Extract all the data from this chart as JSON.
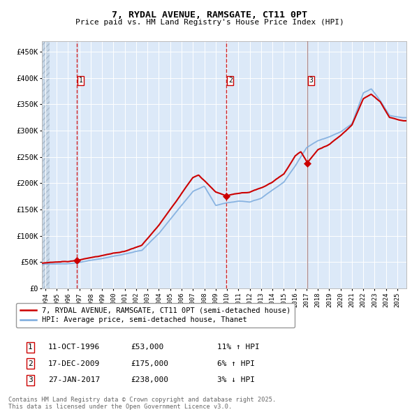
{
  "title_line1": "7, RYDAL AVENUE, RAMSGATE, CT11 0PT",
  "title_line2": "Price paid vs. HM Land Registry's House Price Index (HPI)",
  "ylabel_ticks": [
    "£0",
    "£50K",
    "£100K",
    "£150K",
    "£200K",
    "£250K",
    "£300K",
    "£350K",
    "£400K",
    "£450K"
  ],
  "ytick_values": [
    0,
    50000,
    100000,
    150000,
    200000,
    250000,
    300000,
    350000,
    400000,
    450000
  ],
  "ylim": [
    0,
    470000
  ],
  "xlim_start": 1993.7,
  "xlim_end": 2025.8,
  "bg_color": "#dce9f8",
  "grid_color": "#ffffff",
  "red_line_color": "#cc0000",
  "blue_line_color": "#7aaadd",
  "marker_color": "#cc0000",
  "sale_dates": [
    1996.78,
    2009.96,
    2017.07
  ],
  "sale_prices": [
    53000,
    175000,
    238000
  ],
  "sale_labels": [
    "1",
    "2",
    "3"
  ],
  "legend_red_label": "7, RYDAL AVENUE, RAMSGATE, CT11 0PT (semi-detached house)",
  "legend_blue_label": "HPI: Average price, semi-detached house, Thanet",
  "table_rows": [
    [
      "1",
      "11-OCT-1996",
      "£53,000",
      "11% ↑ HPI"
    ],
    [
      "2",
      "17-DEC-2009",
      "£175,000",
      "6% ↑ HPI"
    ],
    [
      "3",
      "27-JAN-2017",
      "£238,000",
      "3% ↓ HPI"
    ]
  ],
  "footer_text": "Contains HM Land Registry data © Crown copyright and database right 2025.\nThis data is licensed under the Open Government Licence v3.0.",
  "x_tick_years": [
    1994,
    1995,
    1996,
    1997,
    1998,
    1999,
    2000,
    2001,
    2002,
    2003,
    2004,
    2005,
    2006,
    2007,
    2008,
    2009,
    2010,
    2011,
    2012,
    2013,
    2014,
    2015,
    2016,
    2017,
    2018,
    2019,
    2020,
    2021,
    2022,
    2023,
    2024,
    2025
  ],
  "hpi_knots_t": [
    1993.7,
    1994.5,
    1996.0,
    1997.0,
    1999.0,
    2001.0,
    2002.5,
    2004.0,
    2005.5,
    2007.0,
    2008.0,
    2009.0,
    2010.0,
    2011.0,
    2012.0,
    2013.0,
    2014.0,
    2015.0,
    2016.0,
    2017.0,
    2018.0,
    2019.0,
    2020.0,
    2021.0,
    2022.0,
    2022.7,
    2023.5,
    2024.3,
    2025.5
  ],
  "hpi_knots_v": [
    46000,
    47000,
    47500,
    50000,
    57000,
    65000,
    72000,
    105000,
    145000,
    185000,
    195000,
    158000,
    163000,
    165000,
    163000,
    170000,
    185000,
    200000,
    230000,
    265000,
    278000,
    285000,
    295000,
    310000,
    368000,
    375000,
    352000,
    325000,
    320000
  ],
  "red_knots_t": [
    1993.7,
    1994.5,
    1996.0,
    1996.78,
    1997.5,
    1999.0,
    2001.0,
    2002.5,
    2004.0,
    2005.5,
    2007.0,
    2007.5,
    2008.0,
    2009.0,
    2009.96,
    2010.5,
    2011.0,
    2012.0,
    2013.0,
    2014.0,
    2015.0,
    2016.0,
    2016.5,
    2017.07,
    2018.0,
    2019.0,
    2020.0,
    2021.0,
    2022.0,
    2022.7,
    2023.5,
    2024.3,
    2025.5
  ],
  "red_knots_v": [
    48000,
    49000,
    50000,
    53000,
    56000,
    62000,
    70000,
    82000,
    120000,
    165000,
    210000,
    215000,
    205000,
    183000,
    175000,
    178000,
    180000,
    182000,
    190000,
    200000,
    215000,
    250000,
    258000,
    238000,
    262000,
    272000,
    290000,
    310000,
    360000,
    370000,
    355000,
    325000,
    318000
  ]
}
